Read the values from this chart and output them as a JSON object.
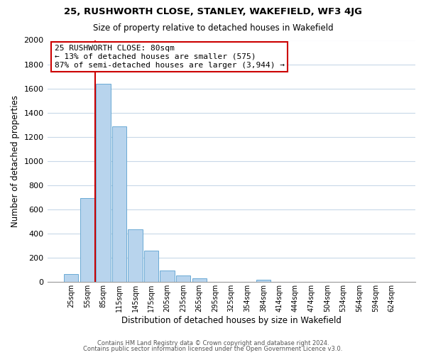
{
  "title1": "25, RUSHWORTH CLOSE, STANLEY, WAKEFIELD, WF3 4JG",
  "title2": "Size of property relative to detached houses in Wakefield",
  "xlabel": "Distribution of detached houses by size in Wakefield",
  "ylabel": "Number of detached properties",
  "bar_labels": [
    "25sqm",
    "55sqm",
    "85sqm",
    "115sqm",
    "145sqm",
    "175sqm",
    "205sqm",
    "235sqm",
    "265sqm",
    "295sqm",
    "325sqm",
    "354sqm",
    "384sqm",
    "414sqm",
    "444sqm",
    "474sqm",
    "504sqm",
    "534sqm",
    "564sqm",
    "594sqm",
    "624sqm"
  ],
  "bar_values": [
    65,
    690,
    1640,
    1285,
    435,
    255,
    90,
    50,
    30,
    0,
    0,
    0,
    15,
    0,
    0,
    0,
    0,
    0,
    0,
    0,
    0
  ],
  "bar_color": "#b8d4ed",
  "bar_edgecolor": "#6aaad4",
  "vline_color": "#cc0000",
  "annotation_title": "25 RUSHWORTH CLOSE: 80sqm",
  "annotation_line1": "← 13% of detached houses are smaller (575)",
  "annotation_line2": "87% of semi-detached houses are larger (3,944) →",
  "box_facecolor": "#ffffff",
  "box_edgecolor": "#cc0000",
  "ylim": [
    0,
    2000
  ],
  "yticks": [
    0,
    200,
    400,
    600,
    800,
    1000,
    1200,
    1400,
    1600,
    1800,
    2000
  ],
  "footer1": "Contains HM Land Registry data © Crown copyright and database right 2024.",
  "footer2": "Contains public sector information licensed under the Open Government Licence v3.0."
}
